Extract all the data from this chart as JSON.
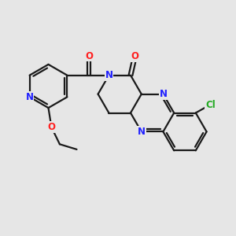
{
  "background_color": "#e6e6e6",
  "bond_color": "#1a1a1a",
  "bond_width": 1.6,
  "atom_colors": {
    "N": "#2020ff",
    "O": "#ff2020",
    "Cl": "#22aa22"
  },
  "font_size": 8.5,
  "fig_width": 3.0,
  "fig_height": 3.0,
  "dpi": 100,
  "xlim": [
    0,
    10
  ],
  "ylim": [
    0,
    10
  ]
}
